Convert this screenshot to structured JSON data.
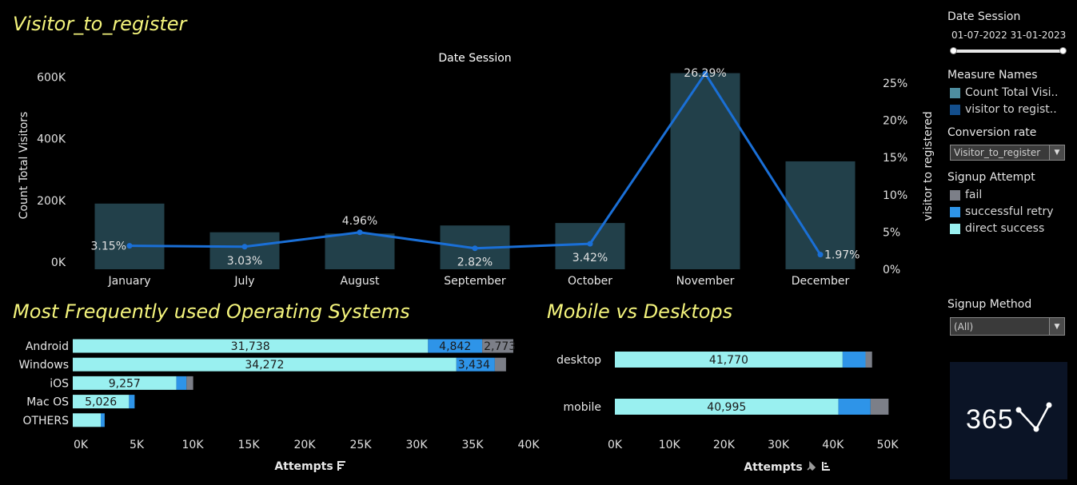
{
  "top_title": "Visitor_to_register",
  "os_title": "Most Frequently used Operating Systems",
  "md_title": "Mobile vs Desktops",
  "main_chart": {
    "chart_data": {
      "type": "bar",
      "title": "Date Session",
      "categories": [
        "January",
        "July",
        "August",
        "September",
        "October",
        "November",
        "December"
      ],
      "series": [
        {
          "name": "Count Total Visitors",
          "type": "bar",
          "values": [
            213000,
            120000,
            116000,
            142000,
            150000,
            636000,
            350000
          ]
        },
        {
          "name": "visitor to registered",
          "type": "line",
          "values": [
            3.15,
            3.03,
            4.96,
            2.82,
            3.42,
            26.29,
            1.97
          ],
          "labels": [
            "3.15%",
            "3.03%",
            "4.96%",
            "2.82%",
            "3.42%",
            "26.29%",
            "1.97%"
          ]
        }
      ],
      "ylabel": "Count Total Visitors",
      "ylim": [
        0,
        640000
      ],
      "y_ticks": [
        "0K",
        "200K",
        "400K",
        "600K"
      ],
      "y_tick_values": [
        0,
        200000,
        400000,
        600000
      ],
      "y2label": "visitor to registered",
      "y2lim": [
        0,
        26.5
      ],
      "y2_ticks": [
        "0%",
        "5%",
        "10%",
        "15%",
        "20%",
        "25%"
      ],
      "y2_tick_values": [
        0,
        5,
        10,
        15,
        20,
        25
      ]
    }
  },
  "os_chart": {
    "chart_data": {
      "type": "bar",
      "orientation": "horizontal",
      "stacked": true,
      "categories": [
        "Android",
        "Windows",
        "iOS",
        "Mac OS",
        "OTHERS"
      ],
      "series": [
        {
          "name": "direct success",
          "values": [
            31738,
            34272,
            9257,
            5026,
            2500
          ],
          "labels": [
            "31,738",
            "34,272",
            "9,257",
            "5,026",
            ""
          ]
        },
        {
          "name": "successful retry",
          "values": [
            4842,
            3434,
            900,
            500,
            350
          ],
          "labels": [
            "4,842",
            "3,434",
            "",
            "",
            ""
          ]
        },
        {
          "name": "fail",
          "values": [
            2773,
            1000,
            600,
            0,
            0
          ],
          "labels": [
            "2,773",
            "",
            "",
            "",
            ""
          ]
        }
      ],
      "xlim": [
        0,
        40000
      ],
      "x_ticks": [
        "0K",
        "5K",
        "10K",
        "15K",
        "20K",
        "25K",
        "30K",
        "35K",
        "40K"
      ],
      "x_tick_values": [
        0,
        5000,
        10000,
        15000,
        20000,
        25000,
        30000,
        35000,
        40000
      ],
      "xlabel": "Attempts"
    }
  },
  "md_chart": {
    "chart_data": {
      "type": "bar",
      "orientation": "horizontal",
      "stacked": true,
      "categories": [
        "desktop",
        "mobile"
      ],
      "series": [
        {
          "name": "direct success",
          "values": [
            41770,
            40995
          ],
          "labels": [
            "41,770",
            "40,995"
          ]
        },
        {
          "name": "successful retry",
          "values": [
            4200,
            5900
          ],
          "labels": [
            "",
            ""
          ]
        },
        {
          "name": "fail",
          "values": [
            1200,
            3300
          ],
          "labels": [
            "",
            ""
          ]
        }
      ],
      "xlim": [
        0,
        50000
      ],
      "x_ticks": [
        "0K",
        "10K",
        "20K",
        "30K",
        "40K",
        "50K"
      ],
      "x_tick_values": [
        0,
        10000,
        20000,
        30000,
        40000,
        50000
      ],
      "xlabel": "Attempts"
    }
  },
  "colors": {
    "bar": "#22404a",
    "line": "#1a6fd6",
    "direct_success": "#99f0f0",
    "successful_retry": "#2e94e8",
    "fail": "#7c7f88",
    "measure_count": "#4e8ea0",
    "measure_rate": "#134e8c",
    "title": "#f4f47c"
  },
  "side": {
    "date_session": {
      "label": "Date Session",
      "start": "01-07-2022",
      "end": "31-01-2023"
    },
    "measure_names": {
      "label": "Measure Names",
      "items": [
        "Count Total Visi..",
        "visitor to regist.."
      ]
    },
    "conversion": {
      "label": "Conversion rate",
      "value": "Visitor_to_register"
    },
    "signup_attempt": {
      "label": "Signup Attempt",
      "items": [
        "fail",
        "successful retry",
        "direct success"
      ]
    },
    "signup_method": {
      "label": "Signup Method",
      "value": "(All)"
    },
    "logo_text": "365"
  }
}
